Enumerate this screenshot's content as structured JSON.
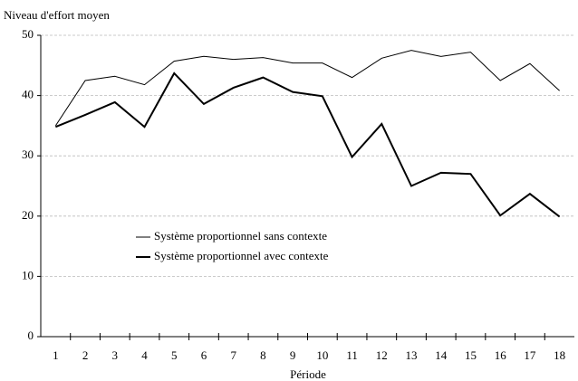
{
  "chart_data": {
    "type": "line",
    "y_label": "Niveau d'effort moyen",
    "x_label": "Période",
    "categories": [
      "1",
      "2",
      "3",
      "4",
      "5",
      "6",
      "7",
      "8",
      "9",
      "10",
      "11",
      "12",
      "13",
      "14",
      "15",
      "16",
      "17",
      "18"
    ],
    "series": [
      {
        "name": "Système proportionnel sans contexte",
        "color": "#000000",
        "line_width": 1,
        "values": [
          35,
          42.5,
          43.2,
          41.8,
          45.7,
          46.5,
          46,
          46.3,
          45.4,
          45.4,
          43,
          46.2,
          47.5,
          46.5,
          47.2,
          42.5,
          45.3,
          40.8
        ]
      },
      {
        "name": "Système proportionnel avec contexte",
        "color": "#000000",
        "line_width": 2,
        "values": [
          34.8,
          36.8,
          38.9,
          34.8,
          43.7,
          38.6,
          41.3,
          43,
          40.6,
          39.9,
          29.8,
          35.3,
          25,
          27.2,
          27,
          20.1,
          23.7,
          19.9
        ]
      }
    ],
    "ylim": [
      0,
      50
    ],
    "yticks": [
      0,
      10,
      20,
      30,
      40,
      50
    ],
    "grid": true
  }
}
